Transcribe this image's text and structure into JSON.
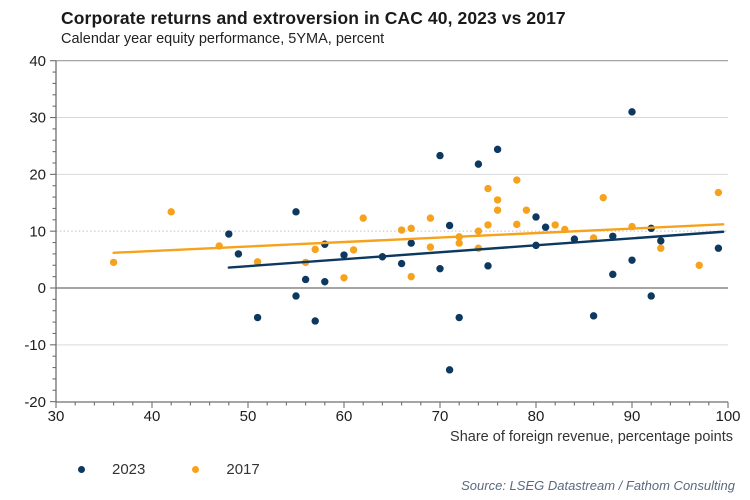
{
  "title": "Corporate returns and extroversion in CAC 40, 2023 vs 2017",
  "subtitle": "Calendar year equity performance, 5YMA, percent",
  "x_axis_label": "Share of foreign revenue, percentage points",
  "source": "Source: LSEG Datastream / Fathom Consulting",
  "legend": [
    {
      "label": "2023",
      "color": "#0d3860"
    },
    {
      "label": "2017",
      "color": "#f6a21c"
    }
  ],
  "colors": {
    "navy": "#0d3860",
    "orange": "#f6a21c",
    "grid": "#d9d9d9",
    "dotted_grid": "#c2c2c2",
    "zero_line": "#6f6f6f",
    "axis": "#6f6f6f",
    "tick_text": "#202020",
    "top_border": "#9a9a9a"
  },
  "chart_data": {
    "type": "scatter",
    "title": "Corporate returns and extroversion in CAC 40, 2023 vs 2017",
    "subtitle": "Calendar year equity performance, 5YMA, percent",
    "xlabel": "Share of foreign revenue, percentage points",
    "ylabel": "",
    "xlim": [
      30,
      100
    ],
    "ylim": [
      -20,
      40
    ],
    "x_ticks": [
      30,
      40,
      50,
      60,
      70,
      80,
      90,
      100
    ],
    "y_ticks": [
      40,
      30,
      20,
      10,
      0,
      -10,
      -20
    ],
    "minor_tick_step": 2,
    "grid": "horizontal",
    "legend_position": "bottom-left",
    "series": [
      {
        "name": "2023",
        "color": "#0d3860",
        "points": [
          [
            48,
            9.5
          ],
          [
            49,
            6.0
          ],
          [
            51,
            -5.2
          ],
          [
            55,
            13.4
          ],
          [
            55,
            -1.4
          ],
          [
            56,
            1.5
          ],
          [
            57,
            -5.8
          ],
          [
            58,
            7.7
          ],
          [
            58,
            1.1
          ],
          [
            60,
            5.8
          ],
          [
            64,
            5.5
          ],
          [
            66,
            4.3
          ],
          [
            67,
            7.9
          ],
          [
            70,
            23.3
          ],
          [
            70,
            3.4
          ],
          [
            71,
            11.0
          ],
          [
            71,
            -14.4
          ],
          [
            72,
            -5.2
          ],
          [
            74,
            21.8
          ],
          [
            75,
            3.9
          ],
          [
            76,
            24.4
          ],
          [
            80,
            12.5
          ],
          [
            80,
            7.5
          ],
          [
            81,
            10.7
          ],
          [
            84,
            8.6
          ],
          [
            86,
            -4.9
          ],
          [
            88,
            9.1
          ],
          [
            88,
            2.4
          ],
          [
            90,
            31.0
          ],
          [
            90,
            4.9
          ],
          [
            92,
            10.5
          ],
          [
            92,
            -1.4
          ],
          [
            93,
            8.3
          ],
          [
            99,
            7.0
          ]
        ]
      },
      {
        "name": "2017",
        "color": "#f6a21c",
        "points": [
          [
            36,
            4.5
          ],
          [
            42,
            13.4
          ],
          [
            47,
            7.4
          ],
          [
            51,
            4.6
          ],
          [
            56,
            4.5
          ],
          [
            57,
            6.8
          ],
          [
            60,
            1.8
          ],
          [
            61,
            6.7
          ],
          [
            62,
            12.3
          ],
          [
            66,
            10.2
          ],
          [
            67,
            10.5
          ],
          [
            67,
            2.0
          ],
          [
            69,
            12.3
          ],
          [
            69,
            7.2
          ],
          [
            72,
            9.0
          ],
          [
            72,
            7.9
          ],
          [
            74,
            10.0
          ],
          [
            74,
            7.0
          ],
          [
            75,
            17.5
          ],
          [
            75,
            11.1
          ],
          [
            76,
            15.5
          ],
          [
            76,
            13.7
          ],
          [
            78,
            19.0
          ],
          [
            78,
            11.2
          ],
          [
            79,
            13.7
          ],
          [
            82,
            11.1
          ],
          [
            83,
            10.3
          ],
          [
            86,
            8.8
          ],
          [
            87,
            15.9
          ],
          [
            90,
            10.8
          ],
          [
            93,
            7.0
          ],
          [
            97,
            4.0
          ],
          [
            99,
            16.8
          ]
        ]
      }
    ],
    "trendlines": [
      {
        "series": "2023",
        "color": "#0d3860",
        "x1": 48,
        "y1": 3.6,
        "x2": 99.5,
        "y2": 9.9
      },
      {
        "series": "2017",
        "color": "#f6a21c",
        "x1": 36,
        "y1": 6.2,
        "x2": 99.5,
        "y2": 11.2
      }
    ]
  }
}
